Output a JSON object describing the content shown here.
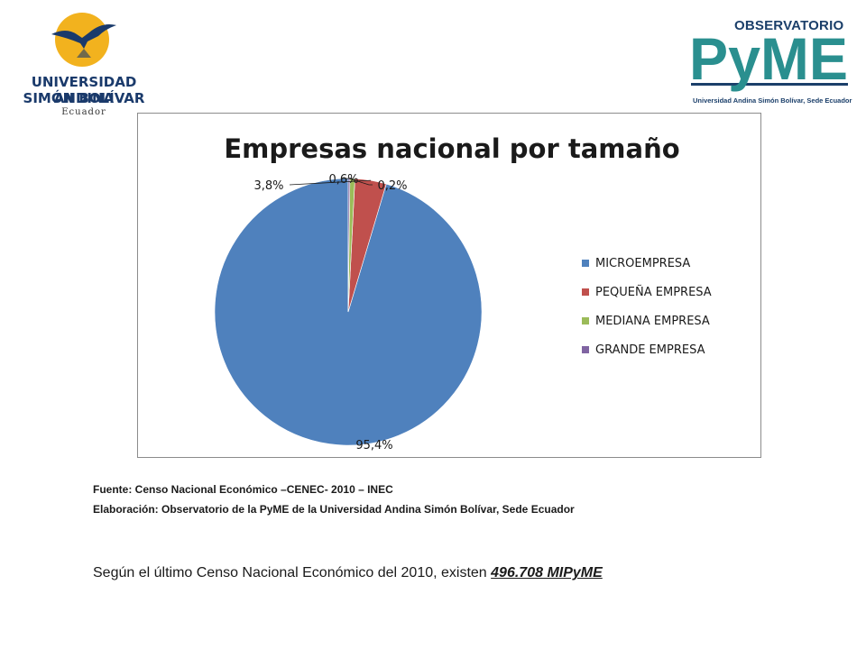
{
  "uasb": {
    "line1": "UNIVERSIDAD ANDINA",
    "line2": "SIMÓN BOLÍVAR",
    "line3": "Ecuador"
  },
  "pyme": {
    "observatorio": "OBSERVATORIO",
    "word": "PyME",
    "caption": "Universidad Andina Simón Bolívar, Sede Ecuador",
    "color_teal": "#2a8f8f",
    "color_navy": "#1b3f6a"
  },
  "chart_data": {
    "type": "pie",
    "title": "Empresas nacional por tamaño",
    "categories": [
      "MICROEMPRESA",
      "PEQUEÑA EMPRESA",
      "MEDIANA EMPRESA",
      "GRANDE EMPRESA"
    ],
    "values": [
      95.4,
      3.8,
      0.6,
      0.2
    ],
    "labels": [
      "95,4%",
      "3,8%",
      "0,6%",
      "0,2%"
    ],
    "colors": [
      "#4f81bd",
      "#c0504d",
      "#9bbb59",
      "#8064a2"
    ],
    "legend": "right"
  },
  "source": {
    "fuente": "Fuente: Censo Nacional Económico –CENEC- 2010 – INEC",
    "elaboracion": "Elaboración: Observatorio de la PyME de la Universidad Andina Simón Bolívar, Sede Ecuador"
  },
  "statement": {
    "text": "Según el último Censo Nacional Económico del 2010, existen ",
    "value": "496.708 MIPyME"
  }
}
